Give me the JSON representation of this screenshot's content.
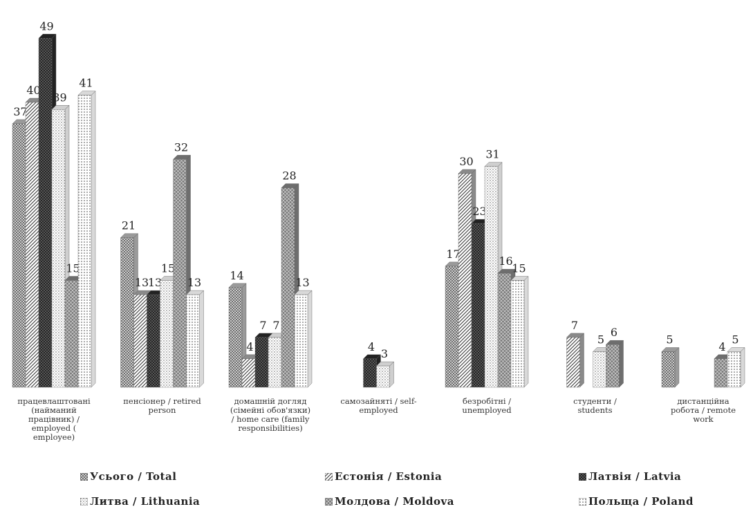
{
  "chart_data": {
    "type": "bar",
    "categories": [
      "працевлаштовані (найманий працівник) / employed ( employee)",
      "пенсіонер / retired person",
      "домашній догляд (сімейні обов'язки) / home care (family responsibilities)",
      "самозайняті / self-employed",
      "безробітні / unemployed",
      "студенти / students",
      "дистанційна робота / remote work"
    ],
    "category_lines": [
      [
        "працевлаштовані",
        "(найманий",
        "працівник) /",
        "employed (",
        "employee)"
      ],
      [
        "пенсіонер / retired",
        "person"
      ],
      [
        "домашній догляд",
        "(сімейні обов'язки)",
        "/ home care (family",
        "responsibilities)"
      ],
      [
        "самозайняті / self-",
        "employed"
      ],
      [
        "безробітні /",
        "unemployed"
      ],
      [
        "студенти /",
        "students"
      ],
      [
        "дистанційна",
        "робота / remote",
        "work"
      ]
    ],
    "series": [
      {
        "name": "Усього / Total",
        "values": [
          37,
          21,
          14,
          null,
          17,
          null,
          5
        ]
      },
      {
        "name": "Естонія / Estonia",
        "values": [
          40,
          13,
          4,
          null,
          30,
          7,
          null
        ]
      },
      {
        "name": "Латвія / Latvia",
        "values": [
          49,
          13,
          7,
          4,
          23,
          null,
          null
        ]
      },
      {
        "name": "Литва / Lithuania",
        "values": [
          39,
          15,
          7,
          3,
          31,
          5,
          null
        ]
      },
      {
        "name": "Молдова / Moldova",
        "values": [
          15,
          32,
          28,
          null,
          16,
          6,
          4
        ]
      },
      {
        "name": "Польща / Poland",
        "values": [
          41,
          13,
          13,
          null,
          15,
          null,
          5
        ]
      }
    ],
    "ylim": [
      0,
      50
    ],
    "grid": false,
    "legend_position": "bottom",
    "colors": [
      "#9a9a9a",
      "#8a8a8a",
      "#222222",
      "#cfcfcf",
      "#6e6e6e",
      "#d9d9d9"
    ]
  }
}
